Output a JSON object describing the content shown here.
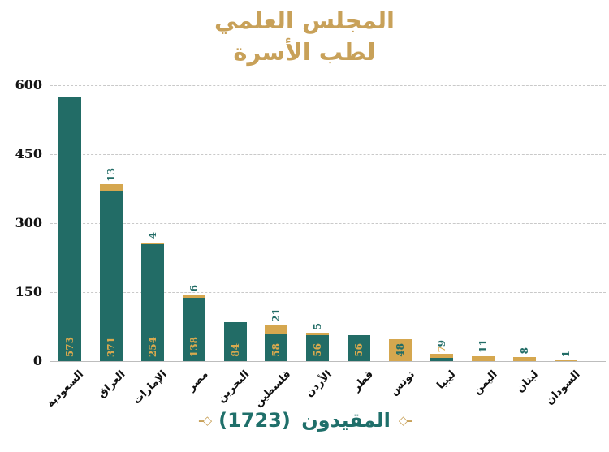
{
  "title": {
    "line1": "المجلس العلمي",
    "line2": "لطب الأسرة"
  },
  "legend": {
    "label": "المقيدون (1723)",
    "ornament_left": "–◇",
    "ornament_right": "◇–"
  },
  "colors": {
    "title": "#C8A159",
    "footer_text": "#1F6F6A",
    "ornament": "#C8A159",
    "axis_text": "#141414",
    "gridline": "#c9c9c9",
    "axis_line": "#bdbdbd"
  },
  "chart_data": {
    "type": "bar",
    "stacked": true,
    "title": "المجلس العلمي لطب الأسرة",
    "xlabel": "",
    "ylabel": "",
    "ylim": [
      0,
      600
    ],
    "yticks": [
      0,
      150,
      300,
      450,
      600
    ],
    "grid": "horizontal-dashed",
    "legend_position": "bottom",
    "total_label": "المقيدون",
    "total": 1723,
    "categories": [
      "السعودية",
      "العراق",
      "الإمارات",
      "مصر",
      "البحرين",
      "فلسطين",
      "الأردن",
      "قطر",
      "تونس",
      "ليبيا",
      "اليمن",
      "لبنان",
      "السودان"
    ],
    "series": [
      {
        "name": "base-segment",
        "color": "#226C66",
        "label_color": "#D8A94E",
        "values": [
          573,
          371,
          254,
          138,
          84,
          58,
          56,
          56,
          0,
          7,
          0,
          0,
          0
        ]
      },
      {
        "name": "top-segment",
        "color": "#D5A74F",
        "label_color": "#226C66",
        "values": [
          0,
          13,
          4,
          6,
          0,
          21,
          5,
          0,
          48,
          9,
          11,
          8,
          1
        ]
      }
    ]
  }
}
